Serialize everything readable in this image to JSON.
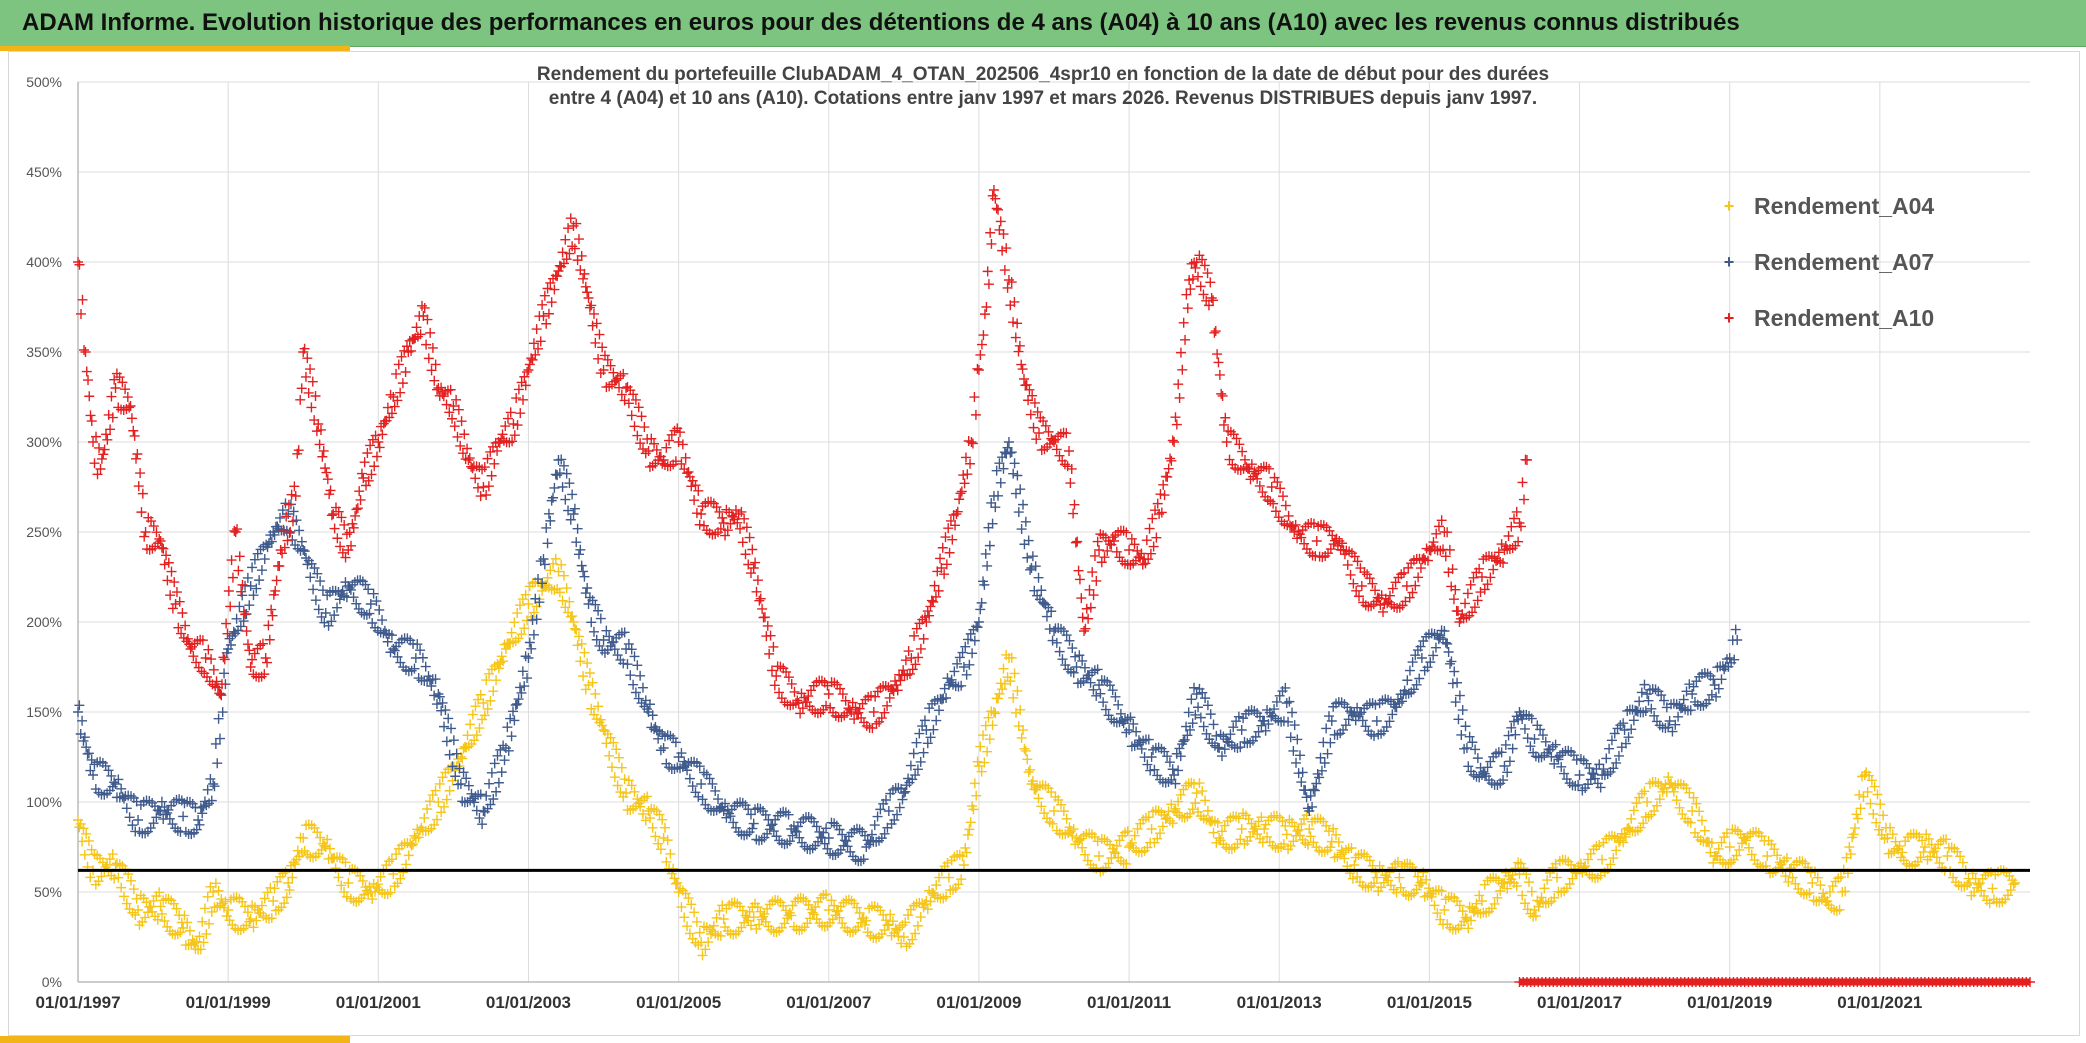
{
  "header": {
    "title": "ADAM Informe. Evolution historique des performances en euros pour des détentions de 4 ans (A04) à 10 ans (A10) avec les revenus connus distribués"
  },
  "colors": {
    "header_bg": "#7cc47f",
    "accent": "#f2b417",
    "series_a04": "#f5c518",
    "series_a07": "#3f5a8c",
    "series_a10": "#e32020",
    "reference_line": "#000000"
  },
  "chart_data": {
    "type": "scatter",
    "title_line1": "Rendement du portefeuille ClubADAM_4_OTAN_202506_4spr10  en fonction de la date de début pour des durées",
    "title_line2": "entre 4 (A04) et 10 ans (A10). Cotations entre janv 1997 et mars 2026. Revenus DISTRIBUES depuis janv 1997.",
    "xlabel": "",
    "ylabel": "",
    "x_range": [
      1997.0,
      2023.0
    ],
    "ylim": [
      0,
      500
    ],
    "yticks": [
      "0%",
      "50%",
      "100%",
      "150%",
      "200%",
      "250%",
      "300%",
      "350%",
      "400%",
      "450%",
      "500%"
    ],
    "xticks": [
      {
        "label": "01/01/1997",
        "x": 1997.0
      },
      {
        "label": "01/01/1999",
        "x": 1999.0
      },
      {
        "label": "01/01/2001",
        "x": 2001.0
      },
      {
        "label": "01/01/2003",
        "x": 2003.0
      },
      {
        "label": "01/01/2005",
        "x": 2005.0
      },
      {
        "label": "01/01/2007",
        "x": 2007.0
      },
      {
        "label": "01/01/2009",
        "x": 2009.0
      },
      {
        "label": "01/01/2011",
        "x": 2011.0
      },
      {
        "label": "01/01/2013",
        "x": 2013.0
      },
      {
        "label": "01/01/2015",
        "x": 2015.0
      },
      {
        "label": "01/01/2017",
        "x": 2017.0
      },
      {
        "label": "01/01/2019",
        "x": 2019.0
      },
      {
        "label": "01/01/2021",
        "x": 2021.0
      }
    ],
    "reference_line": 62,
    "legend_position": "top-right",
    "grid": true,
    "series": [
      {
        "name": "Rendement_A04",
        "color": "#f5c518",
        "x": [
          1997.0,
          1997.2,
          1997.5,
          1997.8,
          1998.1,
          1998.4,
          1998.6,
          1998.8,
          1999.0,
          1999.3,
          1999.6,
          1999.8,
          2000.0,
          2000.3,
          2000.6,
          2000.9,
          2001.2,
          2001.5,
          2001.8,
          2002.1,
          2002.4,
          2002.7,
          2003.0,
          2003.2,
          2003.4,
          2003.6,
          2003.8,
          2004.0,
          2004.3,
          2004.6,
          2004.8,
          2005.0,
          2005.3,
          2005.6,
          2006.0,
          2006.5,
          2007.0,
          2007.5,
          2007.8,
          2008.0,
          2008.3,
          2008.6,
          2008.8,
          2009.0,
          2009.2,
          2009.4,
          2009.7,
          2010.0,
          2010.3,
          2010.6,
          2011.0,
          2011.3,
          2011.6,
          2011.9,
          2012.2,
          2012.5,
          2012.8,
          2013.1,
          2013.4,
          2013.7,
          2014.0,
          2014.3,
          2014.6,
          2014.9,
          2015.2,
          2015.5,
          2015.7,
          2016.0,
          2016.2,
          2016.4,
          2016.7,
          2017.0,
          2017.3,
          2017.6,
          2017.9,
          2018.2,
          2018.5,
          2018.8,
          2019.0,
          2019.2,
          2019.5,
          2019.8,
          2020.1,
          2020.3,
          2020.5,
          2020.8,
          2021.1,
          2021.3,
          2021.6,
          2021.9,
          2022.2,
          2022.5,
          2022.8
        ],
        "values": [
          90,
          62,
          65,
          40,
          42,
          30,
          18,
          50,
          40,
          35,
          45,
          55,
          80,
          75,
          55,
          50,
          60,
          80,
          100,
          125,
          155,
          185,
          210,
          220,
          228,
          200,
          165,
          140,
          105,
          95,
          80,
          50,
          22,
          35,
          36,
          37,
          40,
          34,
          32,
          25,
          45,
          58,
          65,
          120,
          150,
          180,
          110,
          95,
          80,
          70,
          75,
          85,
          95,
          105,
          80,
          85,
          85,
          82,
          85,
          78,
          65,
          58,
          58,
          55,
          40,
          35,
          45,
          55,
          60,
          40,
          58,
          62,
          68,
          82,
          100,
          110,
          95,
          70,
          75,
          80,
          70,
          62,
          55,
          45,
          50,
          115,
          80,
          72,
          75,
          70,
          55,
          52,
          55
        ]
      },
      {
        "name": "Rendement_A07",
        "color": "#3f5a8c",
        "x": [
          1997.0,
          1997.2,
          1997.5,
          1997.8,
          1998.1,
          1998.4,
          1998.6,
          1998.8,
          1999.0,
          1999.3,
          1999.6,
          1999.8,
          2000.0,
          2000.3,
          2000.6,
          2000.9,
          2001.2,
          2001.5,
          2001.8,
          2002.1,
          2002.4,
          2002.7,
          2003.0,
          2003.2,
          2003.4,
          2003.6,
          2003.8,
          2004.0,
          2004.3,
          2004.6,
          2004.8,
          2005.0,
          2005.3,
          2005.6,
          2006.0,
          2006.5,
          2007.0,
          2007.5,
          2007.8,
          2008.0,
          2008.3,
          2008.6,
          2008.8,
          2009.0,
          2009.2,
          2009.4,
          2009.7,
          2010.0,
          2010.3,
          2010.6,
          2011.0,
          2011.3,
          2011.6,
          2011.9,
          2012.2,
          2012.5,
          2012.8,
          2013.1,
          2013.4,
          2013.7,
          2014.0,
          2014.3,
          2014.6,
          2014.9,
          2015.2,
          2015.5,
          2015.7,
          2016.0,
          2016.2,
          2016.4,
          2016.7,
          2017.0,
          2017.3,
          2017.6,
          2017.9,
          2018.2,
          2018.5,
          2018.8,
          2019.0,
          2019.1
        ],
        "values": [
          150,
          115,
          110,
          90,
          95,
          92,
          90,
          110,
          185,
          220,
          250,
          260,
          240,
          205,
          220,
          210,
          185,
          180,
          160,
          110,
          95,
          130,
          180,
          235,
          290,
          260,
          210,
          190,
          185,
          150,
          130,
          125,
          110,
          95,
          88,
          85,
          80,
          75,
          95,
          105,
          140,
          165,
          175,
          200,
          270,
          300,
          230,
          195,
          175,
          165,
          140,
          125,
          115,
          160,
          130,
          140,
          145,
          155,
          95,
          145,
          150,
          145,
          155,
          180,
          195,
          130,
          115,
          120,
          150,
          135,
          125,
          115,
          115,
          140,
          160,
          145,
          160,
          165,
          180,
          190
        ]
      },
      {
        "name": "Rendement_A10",
        "color": "#e32020",
        "x": [
          1997.0,
          1997.1,
          1997.2,
          1997.3,
          1997.5,
          1997.7,
          1997.9,
          1998.1,
          1998.3,
          1998.5,
          1998.7,
          1998.9,
          1999.1,
          1999.3,
          1999.5,
          1999.7,
          1999.9,
          2000.0,
          2000.2,
          2000.4,
          2000.6,
          2000.8,
          2001.0,
          2001.2,
          2001.4,
          2001.6,
          2001.8,
          2002.0,
          2002.2,
          2002.4,
          2002.6,
          2002.8,
          2003.0,
          2003.2,
          2003.4,
          2003.6,
          2003.8,
          2004.0,
          2004.3,
          2004.6,
          2004.8,
          2005.0,
          2005.3,
          2005.6,
          2005.8,
          2006.0,
          2006.3,
          2006.6,
          2007.0,
          2007.3,
          2007.6,
          2007.9,
          2008.1,
          2008.3,
          2008.5,
          2008.7,
          2008.9,
          2009.0,
          2009.1,
          2009.2,
          2009.4,
          2009.6,
          2009.8,
          2010.0,
          2010.2,
          2010.4,
          2010.6,
          2010.8,
          2011.0,
          2011.2,
          2011.4,
          2011.6,
          2011.8,
          2011.9,
          2012.1,
          2012.3,
          2012.6,
          2012.9,
          2013.2,
          2013.5,
          2013.8,
          2014.1,
          2014.4,
          2014.7,
          2015.0,
          2015.2,
          2015.4,
          2015.7,
          2016.0,
          2016.2,
          2016.3
        ],
        "values": [
          400,
          350,
          300,
          285,
          330,
          320,
          250,
          245,
          210,
          185,
          180,
          160,
          250,
          175,
          180,
          240,
          270,
          350,
          310,
          260,
          240,
          280,
          300,
          325,
          350,
          370,
          330,
          320,
          290,
          275,
          300,
          310,
          340,
          370,
          395,
          420,
          380,
          340,
          330,
          295,
          290,
          300,
          260,
          255,
          260,
          230,
          170,
          155,
          160,
          150,
          150,
          165,
          180,
          200,
          230,
          260,
          300,
          340,
          375,
          440,
          390,
          335,
          305,
          300,
          295,
          195,
          240,
          245,
          240,
          235,
          260,
          300,
          390,
          400,
          380,
          300,
          285,
          275,
          250,
          245,
          245,
          220,
          210,
          220,
          240,
          250,
          200,
          225,
          240,
          255,
          290
        ]
      }
    ]
  },
  "bottom_band": {
    "start": 2016.2,
    "end": 2023.0,
    "value": 0
  }
}
